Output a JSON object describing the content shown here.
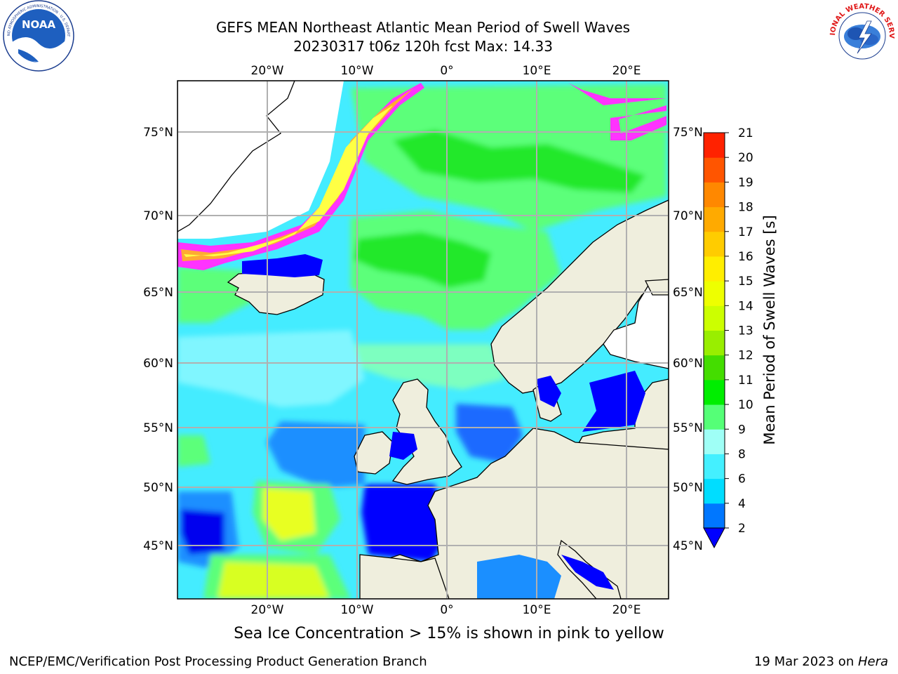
{
  "title": {
    "line1": "GEFS MEAN Northeast Atlantic Mean Period of Swell Waves",
    "line2": "20230317 t06z 120h fcst   Max: 14.33"
  },
  "logos": {
    "left": {
      "text": "NOAA",
      "ring_text": "NATIONAL OCEANIC AND ATMOSPHERIC ADMINISTRATION · U.S. DEPARTMENT OF COMMERCE",
      "icon": "noaa-logo"
    },
    "right": {
      "ring_text": "NATIONAL WEATHER SERVICE",
      "icon": "nws-logo"
    }
  },
  "map": {
    "lon_labels": [
      "20°W",
      "10°W",
      "0°",
      "10°E",
      "20°E"
    ],
    "lat_labels": [
      "75°N",
      "70°N",
      "65°N",
      "60°N",
      "55°N",
      "50°N",
      "45°N"
    ],
    "land_color": "#efeedd",
    "ice_colors": [
      "#ff33ff",
      "#ff9933",
      "#ffff33"
    ]
  },
  "colorbar": {
    "title": "Mean Period of Swell Waves [s]",
    "ticks": [
      "2",
      "4",
      "6",
      "8",
      "9",
      "10",
      "11",
      "12",
      "13",
      "14",
      "15",
      "16",
      "17",
      "18",
      "19",
      "20",
      "21"
    ],
    "colors": [
      "#0000ff",
      "#0077ff",
      "#00ddff",
      "#33eeff",
      "#88ffff",
      "#aaffee",
      "#55ff77",
      "#00ee00",
      "#33dd00",
      "#88ee00",
      "#ccff00",
      "#eeff00",
      "#ffee00",
      "#ffcc00",
      "#ffaa00",
      "#ff8800",
      "#ff5500",
      "#ff2200",
      "#ff0000"
    ],
    "extend": "min"
  },
  "subtitle": "Sea Ice Concentration > 15% is shown in pink to yellow",
  "footer": {
    "left": "NCEP/EMC/Verification Post Processing Product Generation Branch",
    "right_date": "19 Mar 2023 on ",
    "right_host": "Hera"
  }
}
